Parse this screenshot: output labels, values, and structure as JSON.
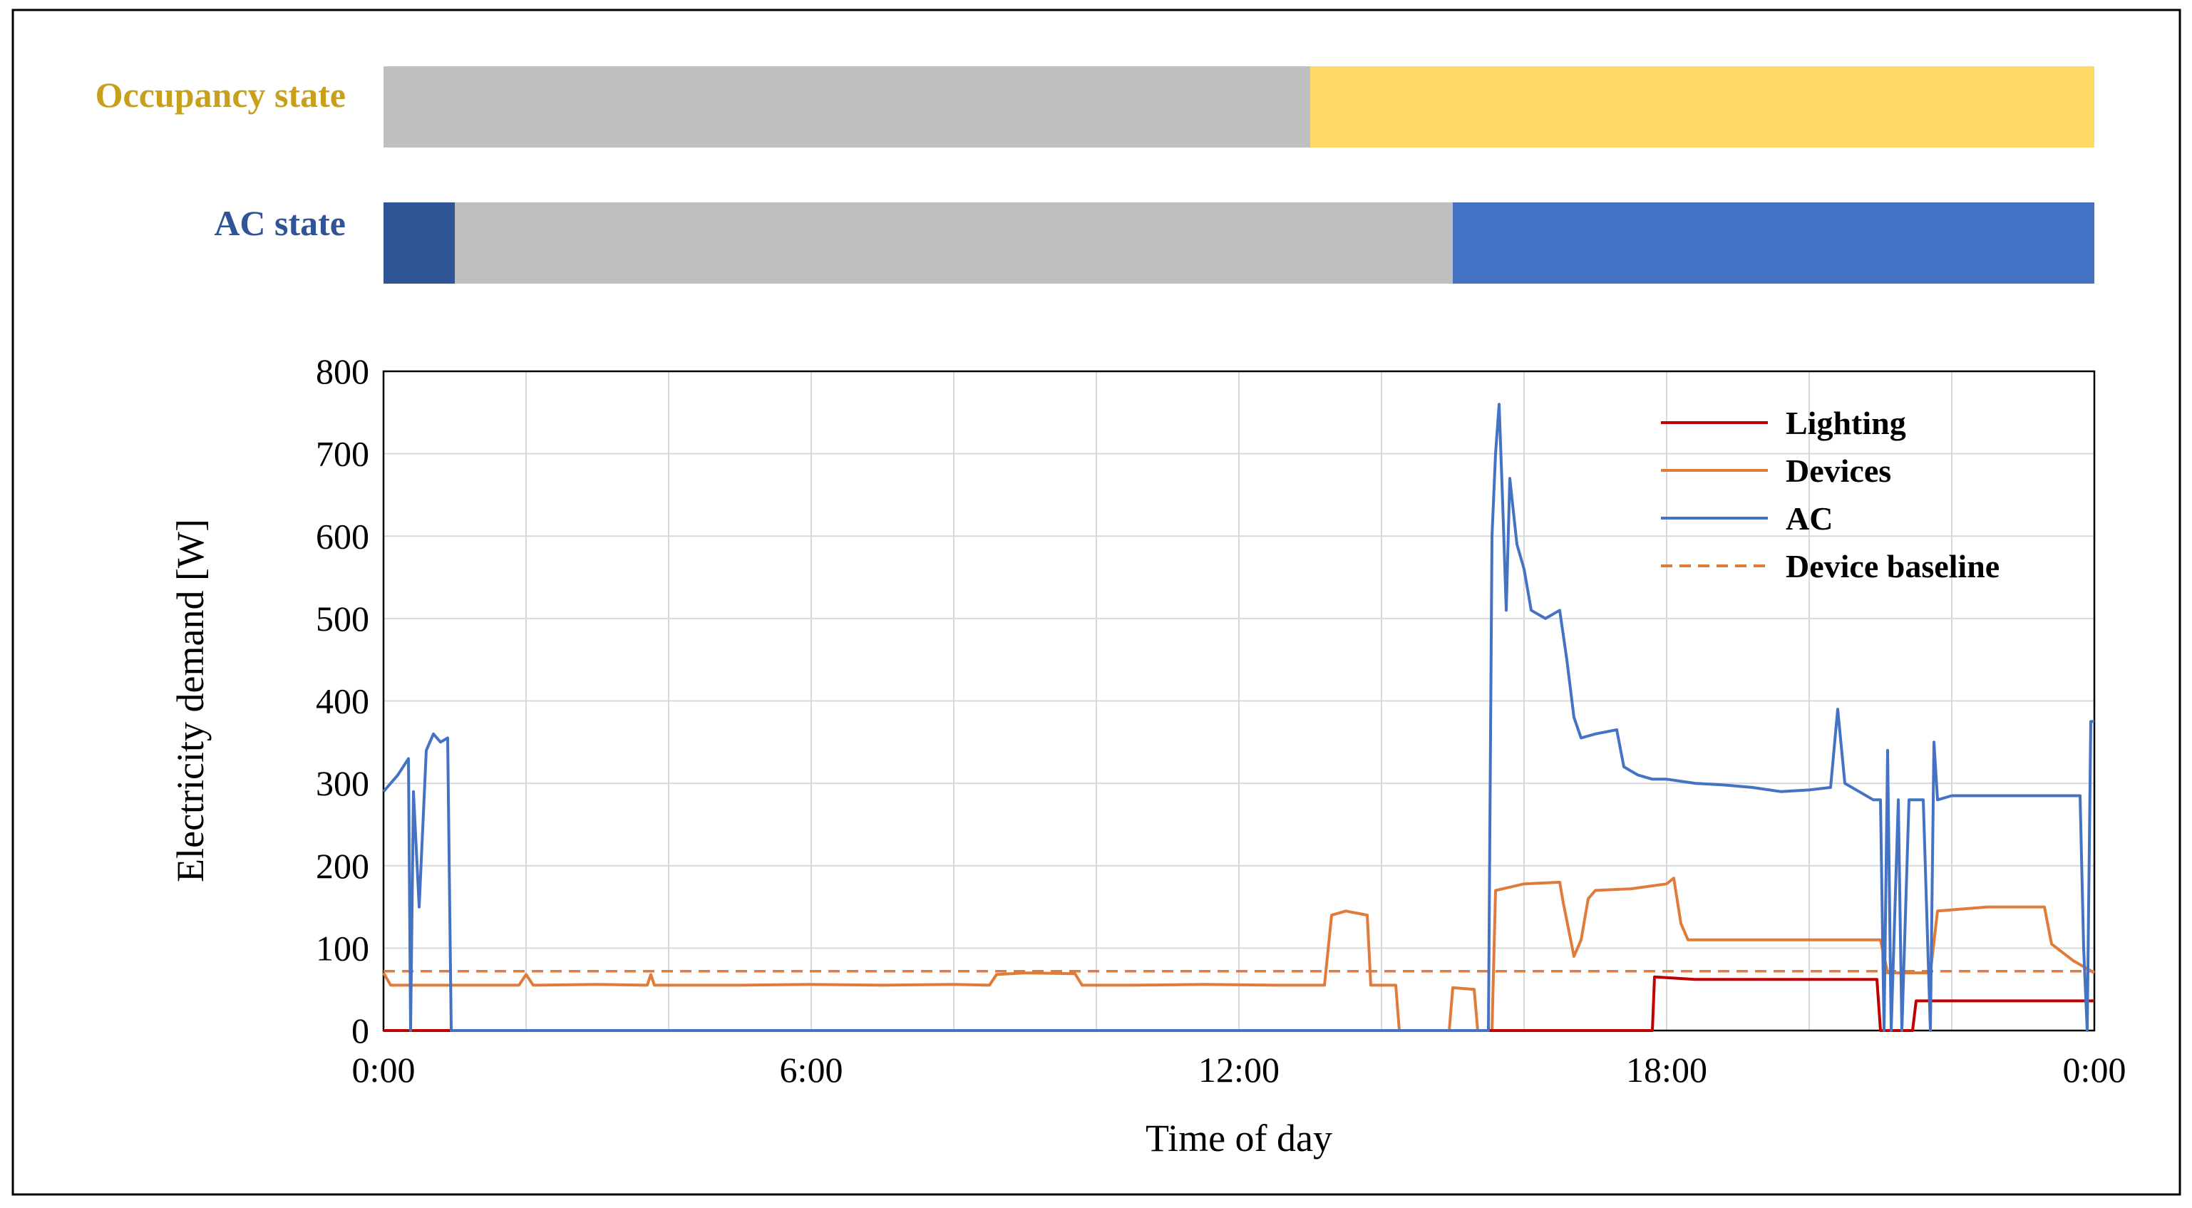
{
  "state_bars": {
    "occupancy": {
      "label": "Occupancy state",
      "label_color": "#C9A01C",
      "segments": [
        {
          "start": 0,
          "end": 13.0,
          "color": "#BFBFBF"
        },
        {
          "start": 13.0,
          "end": 24,
          "color": "#FFD966"
        }
      ]
    },
    "ac": {
      "label": "AC state",
      "label_color": "#2F5597",
      "segments": [
        {
          "start": 0,
          "end": 1.0,
          "color": "#2F5597"
        },
        {
          "start": 1.0,
          "end": 15.0,
          "color": "#BFBFBF"
        },
        {
          "start": 15.0,
          "end": 24,
          "color": "#4472C4"
        }
      ]
    }
  },
  "chart_data": {
    "type": "line",
    "xlabel": "Time of day",
    "ylabel": "Electricity demand [W]",
    "xlim": [
      0,
      24
    ],
    "ylim": [
      0,
      800
    ],
    "x_ticks": [
      {
        "value": 0,
        "label": "0:00"
      },
      {
        "value": 6,
        "label": "6:00"
      },
      {
        "value": 12,
        "label": "12:00"
      },
      {
        "value": 18,
        "label": "18:00"
      },
      {
        "value": 24,
        "label": "0:00"
      }
    ],
    "y_ticks": [
      0,
      100,
      200,
      300,
      400,
      500,
      600,
      700,
      800
    ],
    "x_grid_step_hours": 2,
    "grid": true,
    "legend_position": "top-right",
    "series": [
      {
        "name": "Lighting",
        "color": "#C00000",
        "dash": false,
        "points": [
          [
            0,
            0
          ],
          [
            17.8,
            0
          ],
          [
            17.83,
            65
          ],
          [
            18.4,
            62
          ],
          [
            19.2,
            62
          ],
          [
            20.0,
            62
          ],
          [
            20.95,
            62
          ],
          [
            21.0,
            0
          ],
          [
            21.45,
            0
          ],
          [
            21.5,
            36
          ],
          [
            22.3,
            36
          ],
          [
            23.2,
            36
          ],
          [
            24,
            36
          ]
        ]
      },
      {
        "name": "Devices",
        "color": "#E07B39",
        "dash": false,
        "points": [
          [
            0,
            70
          ],
          [
            0.1,
            55
          ],
          [
            1.0,
            55
          ],
          [
            1.9,
            55
          ],
          [
            2.0,
            68
          ],
          [
            2.1,
            55
          ],
          [
            3.0,
            56
          ],
          [
            3.7,
            55
          ],
          [
            3.75,
            68
          ],
          [
            3.8,
            55
          ],
          [
            5.0,
            55
          ],
          [
            6.0,
            56
          ],
          [
            7.0,
            55
          ],
          [
            8.0,
            56
          ],
          [
            8.5,
            55
          ],
          [
            8.6,
            68
          ],
          [
            9.0,
            70
          ],
          [
            9.7,
            69
          ],
          [
            9.8,
            55
          ],
          [
            10.5,
            55
          ],
          [
            11.5,
            56
          ],
          [
            12.5,
            55
          ],
          [
            13.2,
            55
          ],
          [
            13.3,
            140
          ],
          [
            13.5,
            145
          ],
          [
            13.8,
            140
          ],
          [
            13.85,
            55
          ],
          [
            14.2,
            55
          ],
          [
            14.25,
            0
          ],
          [
            14.95,
            0
          ],
          [
            15.0,
            52
          ],
          [
            15.3,
            50
          ],
          [
            15.35,
            0
          ],
          [
            15.55,
            0
          ],
          [
            15.6,
            170
          ],
          [
            16.0,
            178
          ],
          [
            16.5,
            180
          ],
          [
            16.55,
            155
          ],
          [
            16.7,
            90
          ],
          [
            16.8,
            110
          ],
          [
            16.9,
            160
          ],
          [
            17.0,
            170
          ],
          [
            17.5,
            172
          ],
          [
            18.0,
            178
          ],
          [
            18.1,
            185
          ],
          [
            18.2,
            130
          ],
          [
            18.3,
            110
          ],
          [
            19.0,
            110
          ],
          [
            20.0,
            110
          ],
          [
            21.0,
            110
          ],
          [
            21.1,
            70
          ],
          [
            21.7,
            70
          ],
          [
            21.8,
            145
          ],
          [
            22.5,
            150
          ],
          [
            23.3,
            150
          ],
          [
            23.4,
            105
          ],
          [
            23.7,
            85
          ],
          [
            23.9,
            75
          ],
          [
            24,
            70
          ]
        ]
      },
      {
        "name": "AC",
        "color": "#4472C4",
        "dash": false,
        "points": [
          [
            0,
            290
          ],
          [
            0.2,
            310
          ],
          [
            0.35,
            330
          ],
          [
            0.38,
            0
          ],
          [
            0.42,
            290
          ],
          [
            0.5,
            150
          ],
          [
            0.6,
            340
          ],
          [
            0.7,
            360
          ],
          [
            0.8,
            350
          ],
          [
            0.9,
            355
          ],
          [
            0.95,
            0
          ],
          [
            15.5,
            0
          ],
          [
            15.55,
            600
          ],
          [
            15.6,
            700
          ],
          [
            15.65,
            760
          ],
          [
            15.7,
            640
          ],
          [
            15.75,
            510
          ],
          [
            15.8,
            670
          ],
          [
            15.9,
            590
          ],
          [
            16.0,
            560
          ],
          [
            16.1,
            510
          ],
          [
            16.3,
            500
          ],
          [
            16.5,
            510
          ],
          [
            16.6,
            450
          ],
          [
            16.7,
            380
          ],
          [
            16.8,
            355
          ],
          [
            17.0,
            360
          ],
          [
            17.3,
            365
          ],
          [
            17.4,
            320
          ],
          [
            17.6,
            310
          ],
          [
            17.8,
            305
          ],
          [
            18.0,
            305
          ],
          [
            18.4,
            300
          ],
          [
            18.8,
            298
          ],
          [
            19.2,
            295
          ],
          [
            19.6,
            290
          ],
          [
            20.0,
            292
          ],
          [
            20.3,
            295
          ],
          [
            20.4,
            390
          ],
          [
            20.5,
            300
          ],
          [
            20.7,
            290
          ],
          [
            20.9,
            280
          ],
          [
            21.0,
            280
          ],
          [
            21.05,
            0
          ],
          [
            21.1,
            340
          ],
          [
            21.15,
            0
          ],
          [
            21.25,
            280
          ],
          [
            21.3,
            0
          ],
          [
            21.4,
            280
          ],
          [
            21.6,
            280
          ],
          [
            21.7,
            0
          ],
          [
            21.75,
            350
          ],
          [
            21.8,
            280
          ],
          [
            22.0,
            285
          ],
          [
            22.5,
            285
          ],
          [
            23.0,
            285
          ],
          [
            23.5,
            285
          ],
          [
            23.8,
            285
          ],
          [
            23.85,
            100
          ],
          [
            23.9,
            0
          ],
          [
            23.95,
            375
          ],
          [
            24,
            375
          ]
        ]
      },
      {
        "name": "Device baseline",
        "color": "#E07B39",
        "dash": true,
        "points": [
          [
            0,
            72
          ],
          [
            24,
            72
          ]
        ]
      }
    ]
  }
}
